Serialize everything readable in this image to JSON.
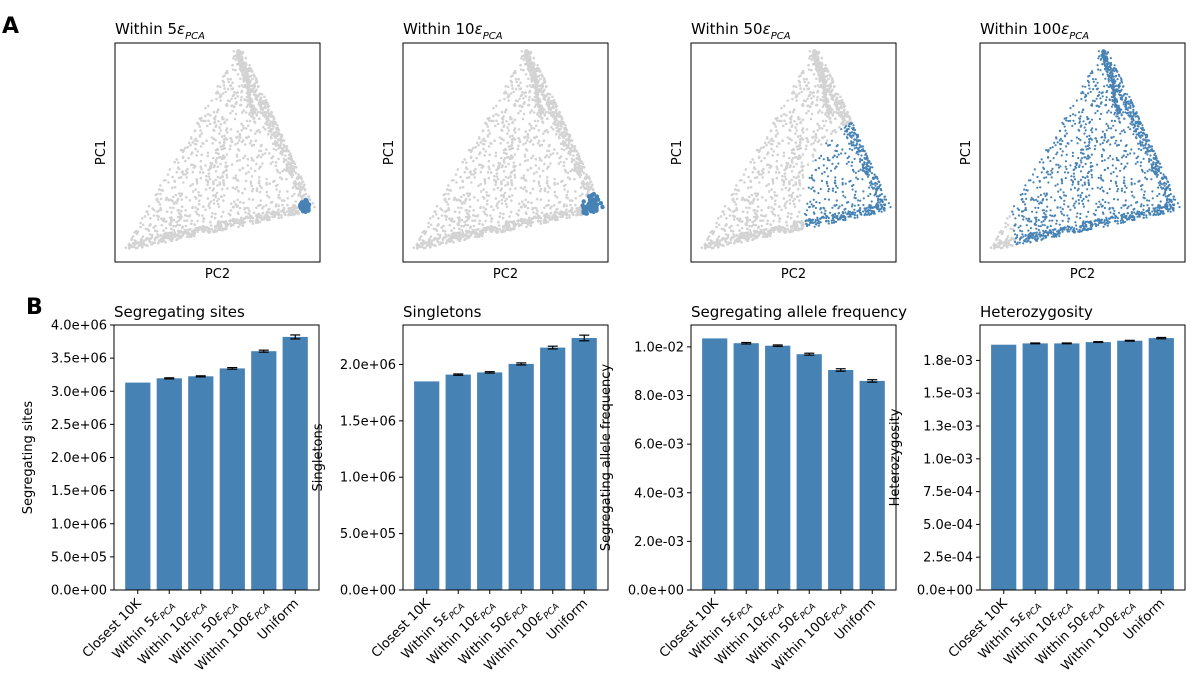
{
  "panel_labels": {
    "a": "A",
    "b": "B"
  },
  "scatter_panels": [
    {
      "title_prefix": "Within ",
      "title_num": "5",
      "title_sym": "ε",
      "title_sub": "PCA",
      "xlabel": "PC2",
      "ylabel": "PC1",
      "highlight_color": "#4682b4",
      "background_color": "#d3d3d3"
    },
    {
      "title_prefix": "Within ",
      "title_num": "10",
      "title_sym": "ε",
      "title_sub": "PCA",
      "xlabel": "PC2",
      "ylabel": "PC1",
      "highlight_color": "#4682b4",
      "background_color": "#d3d3d3"
    },
    {
      "title_prefix": "Within ",
      "title_num": "50",
      "title_sym": "ε",
      "title_sub": "PCA",
      "xlabel": "PC2",
      "ylabel": "PC1",
      "highlight_color": "#4682b4",
      "background_color": "#d3d3d3"
    },
    {
      "title_prefix": "Within ",
      "title_num": "100",
      "title_sym": "ε",
      "title_sub": "PCA",
      "xlabel": "PC2",
      "ylabel": "PC1",
      "highlight_color": "#4682b4",
      "background_color": "#d3d3d3"
    }
  ],
  "chart_data": [
    {
      "type": "bar",
      "title": "Segregating sites",
      "ylabel": "Segregating sites",
      "categories": [
        "Closest 10K",
        "Within 5εPCA",
        "Within 10εPCA",
        "Within 50εPCA",
        "Within 100εPCA",
        "Uniform"
      ],
      "values": [
        3130000,
        3195000,
        3225000,
        3345000,
        3605000,
        3820000
      ],
      "errors": [
        0,
        8000,
        8000,
        12000,
        15000,
        30000
      ],
      "ylim": [
        0,
        4000000
      ],
      "yticks": [
        0,
        500000,
        1000000,
        1500000,
        2000000,
        2500000,
        3000000,
        3500000,
        4000000
      ],
      "ytick_labels": [
        "0.0e+00",
        "5.0e+05",
        "1.0e+06",
        "1.5e+06",
        "2.0e+06",
        "2.5e+06",
        "3.0e+06",
        "3.5e+06",
        "4.0e+06"
      ],
      "color": "#4682b4"
    },
    {
      "type": "bar",
      "title": "Singletons",
      "ylabel": "Singletons",
      "categories": [
        "Closest 10K",
        "Within 5εPCA",
        "Within 10εPCA",
        "Within 50εPCA",
        "Within 100εPCA",
        "Uniform"
      ],
      "values": [
        1850000,
        1910000,
        1930000,
        2005000,
        2150000,
        2235000
      ],
      "errors": [
        0,
        6000,
        6000,
        9000,
        12000,
        25000
      ],
      "ylim": [
        0,
        2350000
      ],
      "yticks": [
        0,
        500000,
        1000000,
        1500000,
        2000000
      ],
      "ytick_labels": [
        "0.0e+00",
        "5.0e+05",
        "1.0e+06",
        "1.5e+06",
        "2.0e+06"
      ],
      "color": "#4682b4"
    },
    {
      "type": "bar",
      "title": "Segregating allele frequency",
      "ylabel": "Segregating allele frequency",
      "categories": [
        "Closest 10K",
        "Within 5εPCA",
        "Within 10εPCA",
        "Within 50εPCA",
        "Within 100εPCA",
        "Uniform"
      ],
      "values": [
        0.01035,
        0.01015,
        0.01005,
        0.0097,
        0.00905,
        0.0086
      ],
      "errors": [
        0,
        3e-05,
        3e-05,
        4e-05,
        5e-05,
        5e-05
      ],
      "ylim": [
        0,
        0.0109
      ],
      "yticks": [
        0,
        0.002,
        0.004,
        0.006,
        0.008,
        0.01
      ],
      "ytick_labels": [
        "0.0e+00",
        "2.0e-03",
        "4.0e-03",
        "6.0e-03",
        "8.0e-03",
        "1.0e-02"
      ],
      "color": "#4682b4"
    },
    {
      "type": "bar",
      "title": "Heterozygosity",
      "ylabel": "Heterozygosity",
      "categories": [
        "Closest 10K",
        "Within 5εPCA",
        "Within 10εPCA",
        "Within 50εPCA",
        "Within 100εPCA",
        "Uniform"
      ],
      "values": [
        0.00187,
        0.00188,
        0.00188,
        0.00189,
        0.0019,
        0.00192
      ],
      "errors": [
        0,
        3e-06,
        3e-06,
        3e-06,
        3e-06,
        5e-06
      ],
      "ylim": [
        0,
        0.00202
      ],
      "yticks": [
        0,
        0.00025,
        0.0005,
        0.00075,
        0.001,
        0.00125,
        0.0015,
        0.00175
      ],
      "ytick_labels": [
        "0.0e+00",
        "2.5e-04",
        "5.0e-04",
        "7.5e-04",
        "1.0e-03",
        "1.3e-03",
        "1.5e-03",
        "1.8e-03"
      ],
      "color": "#4682b4"
    }
  ]
}
